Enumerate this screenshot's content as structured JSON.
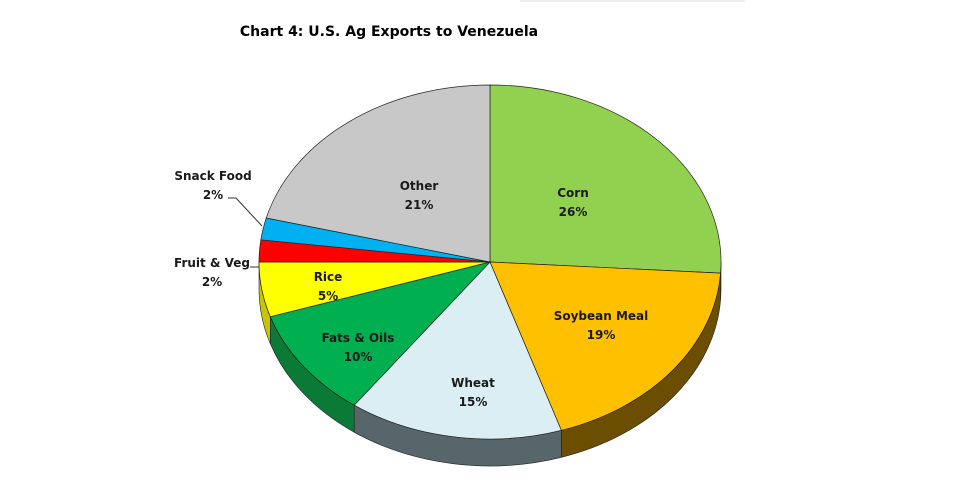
{
  "chart_data": {
    "type": "pie",
    "title": "Chart 4: U.S. Ag Exports to Venezuela",
    "style": "3d",
    "slices": [
      {
        "label": "Corn",
        "value": 26,
        "value_label": "26%",
        "color": "#92D050",
        "side": "#5E8A2C"
      },
      {
        "label": "Soybean Meal",
        "value": 19,
        "value_label": "19%",
        "color": "#FFC000",
        "side": "#6B4E00"
      },
      {
        "label": "Wheat",
        "value": 15,
        "value_label": "15%",
        "color": "#DAEEF3",
        "side": "#56666B"
      },
      {
        "label": "Fats & Oils",
        "value": 10,
        "value_label": "10%",
        "color": "#00B050",
        "side": "#0B7A36"
      },
      {
        "label": "Rice",
        "value": 5,
        "value_label": "5%",
        "color": "#FFFF00",
        "side": "#C8C400"
      },
      {
        "label": "Fruit & Veg",
        "value": 2,
        "value_label": "2%",
        "color": "#FF0000",
        "side": "#A00000"
      },
      {
        "label": "Snack Food",
        "value": 2,
        "value_label": "2%",
        "color": "#00B0F0",
        "side": "#007AA8"
      },
      {
        "label": "Other",
        "value": 21,
        "value_label": "21%",
        "color": "#C8C8C8",
        "side": "#8A8A8A"
      }
    ]
  }
}
